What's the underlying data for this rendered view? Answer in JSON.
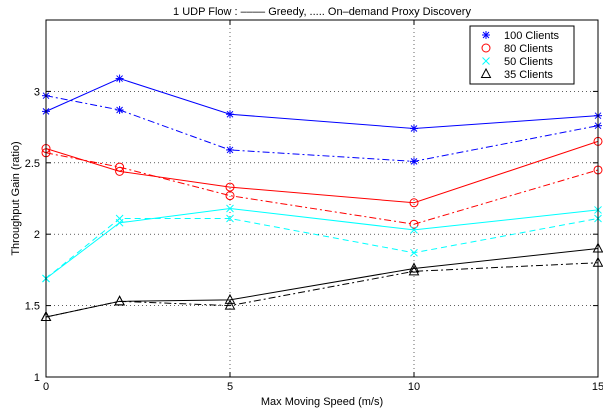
{
  "chart_data": {
    "type": "line",
    "title": "1 UDP Flow : –––– Greedy,  ..... On–demand Proxy Discovery",
    "xlabel": "Max Moving Speed (m/s)",
    "ylabel": "Throughput Gain (ratio)",
    "xlim": [
      0,
      15
    ],
    "ylim": [
      1,
      3.5
    ],
    "xticks": [
      0,
      5,
      10,
      15
    ],
    "yticks": [
      1,
      1.5,
      2,
      2.5,
      3
    ],
    "xtick_labels": [
      "0",
      "5",
      "10",
      "15"
    ],
    "ytick_labels": [
      "1",
      "1.5",
      "2",
      "2.5",
      "3"
    ],
    "grid": true,
    "legend_position": "top-right",
    "x": [
      0,
      2,
      5,
      10,
      15
    ],
    "series": [
      {
        "name": "100 Clients",
        "group": "100 Clients",
        "style": "solid",
        "color": "#0000ff",
        "marker": "star",
        "values": [
          2.86,
          3.09,
          2.84,
          2.74,
          2.83
        ]
      },
      {
        "name": "100 Clients",
        "group": "100 Clients",
        "style": "dashdot",
        "color": "#0000ff",
        "marker": "star",
        "values": [
          2.97,
          2.87,
          2.59,
          2.51,
          2.76
        ]
      },
      {
        "name": "80 Clients",
        "group": "80 Clients",
        "style": "solid",
        "color": "#ff0000",
        "marker": "circle",
        "values": [
          2.6,
          2.44,
          2.33,
          2.22,
          2.65
        ]
      },
      {
        "name": "80 Clients",
        "group": "80 Clients",
        "style": "dashdot",
        "color": "#ff0000",
        "marker": "circle",
        "values": [
          2.57,
          2.47,
          2.27,
          2.07,
          2.45
        ]
      },
      {
        "name": "50 Clients",
        "group": "50 Clients",
        "style": "solid",
        "color": "#00ffff",
        "marker": "x",
        "values": [
          1.69,
          2.08,
          2.18,
          2.03,
          2.17
        ]
      },
      {
        "name": "50 Clients",
        "group": "50 Clients",
        "style": "dashed",
        "color": "#00ffff",
        "marker": "x",
        "values": [
          1.69,
          2.11,
          2.11,
          1.87,
          2.11
        ]
      },
      {
        "name": "35 Clients",
        "group": "35 Clients",
        "style": "solid",
        "color": "#000000",
        "marker": "triangle",
        "values": [
          1.42,
          1.53,
          1.54,
          1.76,
          1.9
        ]
      },
      {
        "name": "35 Clients",
        "group": "35 Clients",
        "style": "dashdot",
        "color": "#000000",
        "marker": "triangle",
        "values": [
          1.42,
          1.53,
          1.5,
          1.74,
          1.8
        ]
      }
    ],
    "legend": [
      {
        "label": "100 Clients",
        "color": "#0000ff",
        "marker": "star"
      },
      {
        "label": "80 Clients",
        "color": "#ff0000",
        "marker": "circle"
      },
      {
        "label": "50 Clients",
        "color": "#00ffff",
        "marker": "x"
      },
      {
        "label": "35 Clients",
        "color": "#000000",
        "marker": "triangle"
      }
    ]
  }
}
